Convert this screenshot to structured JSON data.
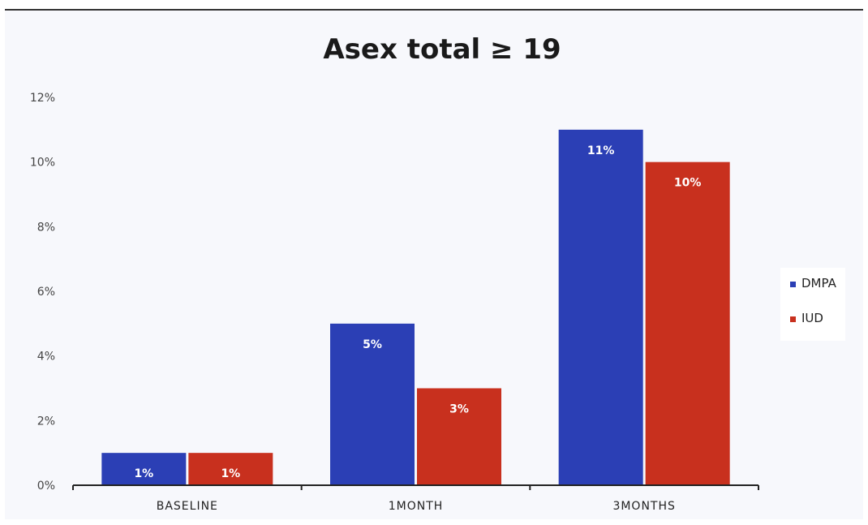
{
  "chart_data": {
    "type": "bar",
    "title": "Asex total ≥ 19",
    "categories": [
      "BASELINE",
      "1MONTH",
      "3MONTHS"
    ],
    "series": [
      {
        "name": "DMPA",
        "color": "#2b3fb5",
        "values": [
          1,
          5,
          11
        ],
        "labels": [
          "1%",
          "5%",
          "11%"
        ]
      },
      {
        "name": "IUD",
        "color": "#c8301e",
        "values": [
          1,
          3,
          10
        ],
        "labels": [
          "1%",
          "3%",
          "10%"
        ]
      }
    ],
    "ylim": [
      0,
      12
    ],
    "yticks": [
      0,
      2,
      4,
      6,
      8,
      10,
      12
    ],
    "ytick_labels": [
      "0%",
      "2%",
      "4%",
      "6%",
      "8%",
      "10%",
      "12%"
    ],
    "xlabel": "",
    "ylabel": "",
    "grid": false,
    "legend": "right"
  }
}
